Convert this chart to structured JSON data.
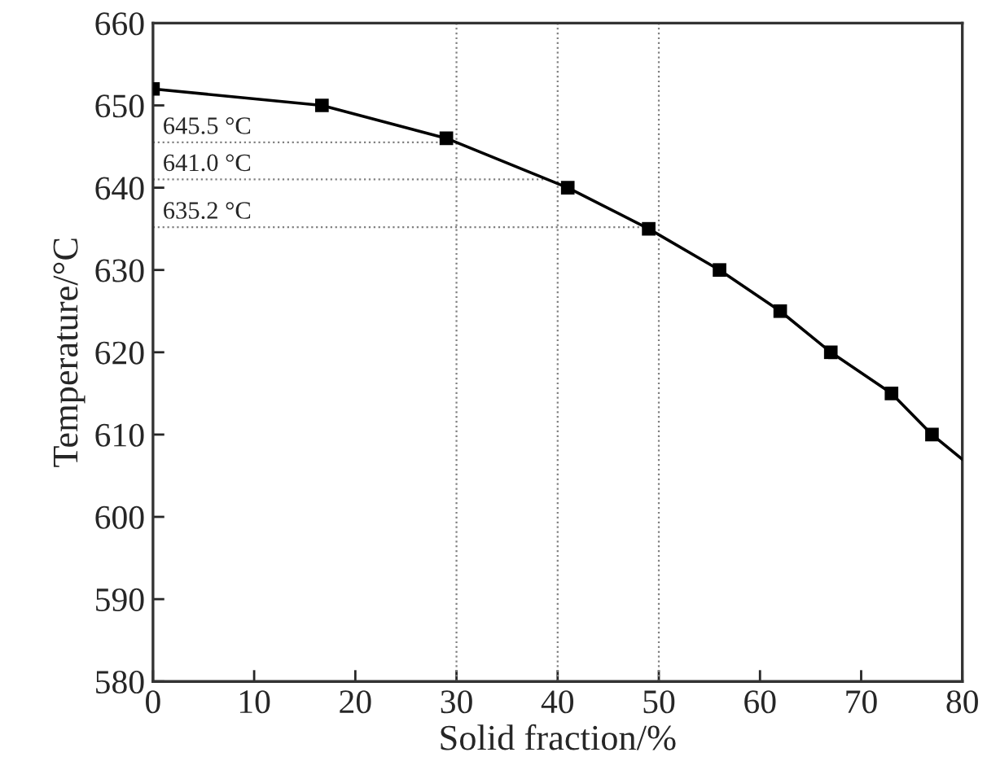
{
  "chart_data": {
    "type": "line",
    "xlabel": "Solid fraction/%",
    "ylabel": "Temperature/°C",
    "xlim": [
      0,
      80
    ],
    "xticks": [
      0,
      10,
      20,
      30,
      40,
      50,
      60,
      70,
      80
    ],
    "ylim": [
      580,
      660
    ],
    "yticks": [
      580,
      590,
      600,
      610,
      620,
      630,
      640,
      650,
      660
    ],
    "grid": false,
    "legend": false,
    "series": [
      {
        "color": "#000000",
        "marker": "none",
        "line_style": "solid",
        "x": [
          0,
          16.7,
          29,
          41,
          49,
          56,
          62,
          67,
          73,
          77,
          80
        ],
        "values": [
          652,
          650,
          646,
          640,
          635,
          630,
          625,
          620,
          615,
          610,
          607
        ]
      },
      {
        "type": "scatter",
        "color": "#000000",
        "marker": "square",
        "x": [
          0,
          16.7,
          29,
          41,
          49,
          56,
          62,
          67,
          73,
          77
        ],
        "values": [
          652,
          650,
          646,
          640,
          635,
          630,
          625,
          620,
          615,
          610
        ]
      }
    ],
    "ref_lines": [
      {
        "axis": "y",
        "value": 645.5,
        "label": "645.5 °C",
        "color": "#808080",
        "line_style": "dotted"
      },
      {
        "axis": "y",
        "value": 641.0,
        "label": "641.0 °C",
        "color": "#808080",
        "line_style": "dotted"
      },
      {
        "axis": "y",
        "value": 635.2,
        "label": "635.2 °C",
        "color": "#808080",
        "line_style": "dotted"
      },
      {
        "axis": "x",
        "value": 30,
        "color": "#808080",
        "line_style": "dotted"
      },
      {
        "axis": "x",
        "value": 40,
        "color": "#808080",
        "line_style": "dotted"
      },
      {
        "axis": "x",
        "value": 50,
        "color": "#808080",
        "line_style": "dotted"
      }
    ]
  }
}
